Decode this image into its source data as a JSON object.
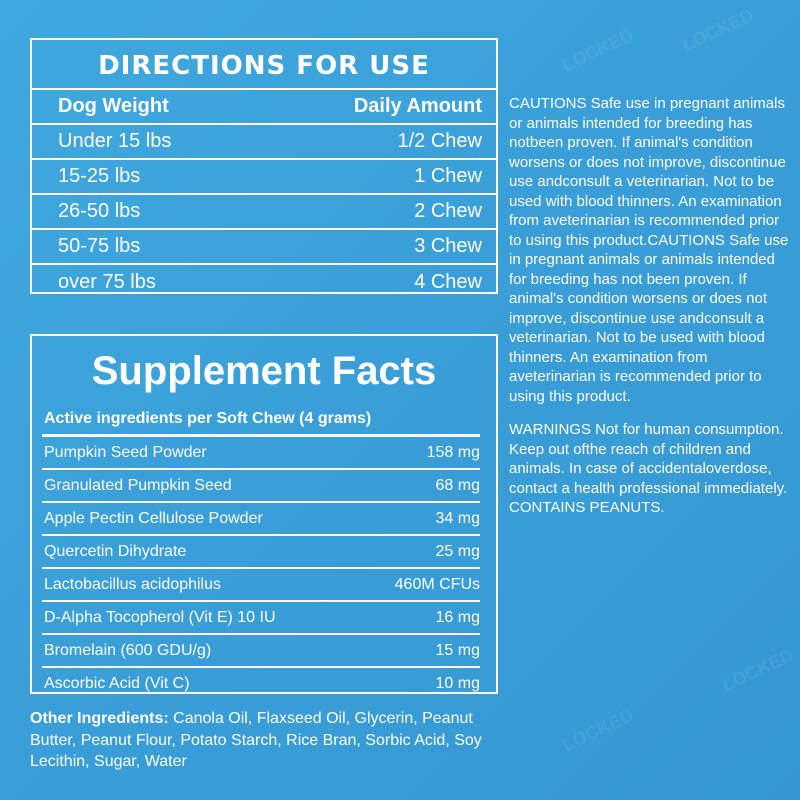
{
  "directions": {
    "title": "DIRECTIONS FOR USE",
    "header": {
      "weight": "Dog Weight",
      "amount": "Daily Amount"
    },
    "rows": [
      {
        "weight": "Under 15 lbs",
        "amount": "1/2 Chew"
      },
      {
        "weight": "15-25 lbs",
        "amount": "1 Chew"
      },
      {
        "weight": "26-50 lbs",
        "amount": "2 Chew"
      },
      {
        "weight": "50-75 lbs",
        "amount": "3 Chew"
      },
      {
        "weight": "over 75 lbs",
        "amount": "4 Chew"
      }
    ]
  },
  "facts": {
    "title": "Supplement Facts",
    "subtitle": "Active ingredients per Soft Chew (4 grams)",
    "rows": [
      {
        "name": "Pumpkin Seed Powder",
        "amount": "158 mg"
      },
      {
        "name": "Granulated Pumpkin Seed",
        "amount": "68 mg"
      },
      {
        "name": "Apple Pectin Cellulose Powder",
        "amount": "34 mg"
      },
      {
        "name": "Quercetin Dihydrate",
        "amount": "25 mg"
      },
      {
        "name": "Lactobacillus acidophilus",
        "amount": "460M CFUs"
      },
      {
        "name": "D-Alpha Tocopherol (Vit E) 10 IU",
        "amount": "16 mg"
      },
      {
        "name": "Bromelain (600 GDU/g)",
        "amount": "15 mg"
      },
      {
        "name": "Ascorbic Acid (Vit C)",
        "amount": "10 mg"
      }
    ]
  },
  "other": {
    "label": "Other Ingredients:",
    "text": " Canola Oil, Flaxseed Oil, Glycerin, Peanut Butter, Peanut Flour, Potato Starch, Rice Bran, Sorbic Acid, Soy Lecithin, Sugar, Water"
  },
  "cautions": "CAUTIONS Safe use in pregnant animals or animals intended for breeding has notbeen proven. If animal's condition worsens or does not improve, discontinue use andconsult a veterinarian. Not to be used with blood thinners. An examination from aveterinarian is recommended prior to using this product.CAUTIONS Safe use in pregnant animals or animals intended for breeding has not been proven. If animal's condition worsens or does not improve, discontinue use andconsult a veterinarian. Not to be used with blood thinners. An examination from aveterinarian is recommended prior to using this product.",
  "warnings": "WARNINGS Not for human consumption. Keep out ofthe reach of children and animals. In case of accidentaloverdose, contact a health professional immediately. CONTAINS PEANUTS.",
  "watermark_text": "LOCKED",
  "colors": {
    "background": "#3a9fd8",
    "text": "#ffffff"
  }
}
